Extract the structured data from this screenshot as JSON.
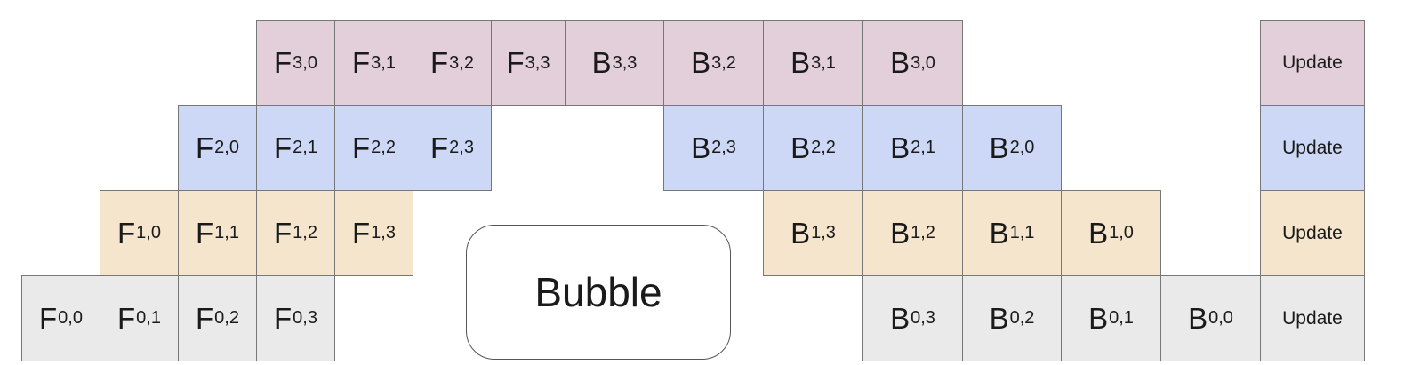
{
  "colors": {
    "stage3": "#e2cfda",
    "stage2": "#ccd8f5",
    "stage1": "#f4e5cc",
    "stage0": "#eaeaea",
    "border": "#777777"
  },
  "bubble_label": "Bubble",
  "update_label": "Update",
  "rows": [
    {
      "stage": 3,
      "color_key": "stage3",
      "cells": [
        {
          "op": "F",
          "idx": "3,0",
          "col": 3
        },
        {
          "op": "F",
          "idx": "3,1",
          "col": 4
        },
        {
          "op": "F",
          "idx": "3,2",
          "col": 5
        },
        {
          "op": "F",
          "idx": "3,3",
          "col": 6
        },
        {
          "op": "B",
          "idx": "3,3",
          "col": 7
        },
        {
          "op": "B",
          "idx": "3,2",
          "col": 8
        },
        {
          "op": "B",
          "idx": "3,1",
          "col": 9
        },
        {
          "op": "B",
          "idx": "3,0",
          "col": 10
        }
      ]
    },
    {
      "stage": 2,
      "color_key": "stage2",
      "cells": [
        {
          "op": "F",
          "idx": "2,0",
          "col": 2
        },
        {
          "op": "F",
          "idx": "2,1",
          "col": 3
        },
        {
          "op": "F",
          "idx": "2,2",
          "col": 4
        },
        {
          "op": "F",
          "idx": "2,3",
          "col": 5
        },
        {
          "op": "B",
          "idx": "2,3",
          "col": 8
        },
        {
          "op": "B",
          "idx": "2,2",
          "col": 9
        },
        {
          "op": "B",
          "idx": "2,1",
          "col": 10
        },
        {
          "op": "B",
          "idx": "2,0",
          "col": 11
        }
      ]
    },
    {
      "stage": 1,
      "color_key": "stage1",
      "cells": [
        {
          "op": "F",
          "idx": "1,0",
          "col": 1
        },
        {
          "op": "F",
          "idx": "1,1",
          "col": 2
        },
        {
          "op": "F",
          "idx": "1,2",
          "col": 3
        },
        {
          "op": "F",
          "idx": "1,3",
          "col": 4
        },
        {
          "op": "B",
          "idx": "1,3",
          "col": 9
        },
        {
          "op": "B",
          "idx": "1,2",
          "col": 10
        },
        {
          "op": "B",
          "idx": "1,1",
          "col": 11
        },
        {
          "op": "B",
          "idx": "1,0",
          "col": 12
        }
      ]
    },
    {
      "stage": 0,
      "color_key": "stage0",
      "cells": [
        {
          "op": "F",
          "idx": "0,0",
          "col": 0
        },
        {
          "op": "F",
          "idx": "0,1",
          "col": 1
        },
        {
          "op": "F",
          "idx": "0,2",
          "col": 2
        },
        {
          "op": "F",
          "idx": "0,3",
          "col": 3
        },
        {
          "op": "B",
          "idx": "0,3",
          "col": 10
        },
        {
          "op": "B",
          "idx": "0,2",
          "col": 11
        },
        {
          "op": "B",
          "idx": "0,1",
          "col": 12
        },
        {
          "op": "B",
          "idx": "0,0",
          "col": 13
        }
      ]
    }
  ]
}
